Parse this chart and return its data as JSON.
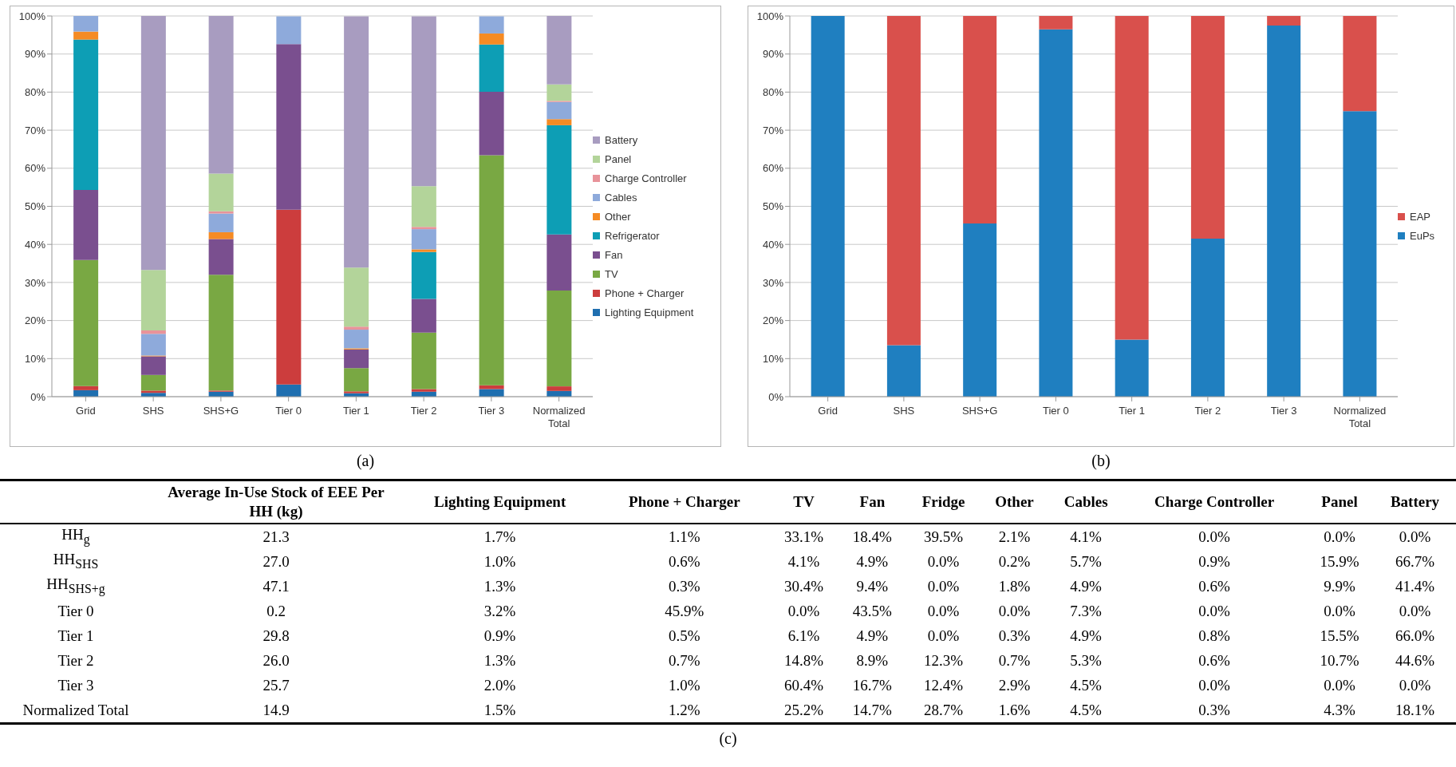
{
  "chart_data": [
    {
      "type": "bar",
      "stacked": true,
      "categories": [
        "Grid",
        "SHS",
        "SHS+G",
        "Tier 0",
        "Tier 1",
        "Tier 2",
        "Tier 3",
        "Normalized Total"
      ],
      "series": [
        {
          "name": "Lighting Equipment",
          "color": "#1f6fb0",
          "values": [
            1.7,
            1.0,
            1.3,
            3.2,
            0.9,
            1.3,
            2.0,
            1.5
          ]
        },
        {
          "name": "Phone + Charger",
          "color": "#cc3d3d",
          "values": [
            1.1,
            0.6,
            0.3,
            45.9,
            0.5,
            0.7,
            1.0,
            1.2
          ]
        },
        {
          "name": "TV",
          "color": "#79a843",
          "values": [
            33.1,
            4.1,
            30.4,
            0.0,
            6.1,
            14.8,
            60.4,
            25.2
          ]
        },
        {
          "name": "Fan",
          "color": "#7a4f8f",
          "values": [
            18.4,
            4.9,
            9.4,
            43.5,
            4.9,
            8.9,
            16.7,
            14.7
          ]
        },
        {
          "name": "Refrigerator",
          "color": "#0d9eb5",
          "values": [
            39.5,
            0.0,
            0.0,
            0.0,
            0.0,
            12.3,
            12.4,
            28.7
          ]
        },
        {
          "name": "Other",
          "color": "#f58b24",
          "values": [
            2.1,
            0.2,
            1.8,
            0.0,
            0.3,
            0.7,
            2.9,
            1.6
          ]
        },
        {
          "name": "Cables",
          "color": "#8eaadb",
          "values": [
            4.1,
            5.7,
            4.9,
            7.3,
            4.9,
            5.3,
            4.5,
            4.5
          ]
        },
        {
          "name": "Charge Controller",
          "color": "#e8939a",
          "values": [
            0.0,
            0.9,
            0.6,
            0.0,
            0.8,
            0.6,
            0.0,
            0.3
          ]
        },
        {
          "name": "Panel",
          "color": "#b3d49a",
          "values": [
            0.0,
            15.9,
            9.9,
            0.0,
            15.5,
            10.7,
            0.0,
            4.3
          ]
        },
        {
          "name": "Battery",
          "color": "#a89cc0",
          "values": [
            0.0,
            66.7,
            41.4,
            0.0,
            66.0,
            44.6,
            0.0,
            18.1
          ]
        }
      ],
      "ylim": [
        0,
        100
      ],
      "yticks": [
        {
          "value": 0,
          "label": "0%"
        },
        {
          "value": 10,
          "label": "10%"
        },
        {
          "value": 20,
          "label": "20%"
        },
        {
          "value": 30,
          "label": "30%"
        },
        {
          "value": 40,
          "label": "40%"
        },
        {
          "value": 50,
          "label": "50%"
        },
        {
          "value": 60,
          "label": "60%"
        },
        {
          "value": 70,
          "label": "70%"
        },
        {
          "value": 80,
          "label": "80%"
        },
        {
          "value": 90,
          "label": "90%"
        },
        {
          "value": 100,
          "label": "100%"
        }
      ],
      "grid": "y",
      "legend": "right",
      "annotations": [
        "(a)"
      ]
    },
    {
      "type": "bar",
      "stacked": true,
      "categories": [
        "Grid",
        "SHS",
        "SHS+G",
        "Tier 0",
        "Tier 1",
        "Tier 2",
        "Tier 3",
        "Normalized Total"
      ],
      "series": [
        {
          "name": "EuPs",
          "color": "#1f7fc0",
          "values": [
            100,
            13.5,
            45.5,
            96.5,
            15,
            41.5,
            97.5,
            75
          ]
        },
        {
          "name": "EAP",
          "color": "#d9504c",
          "values": [
            0,
            86.5,
            54.5,
            3.5,
            85,
            58.5,
            2.5,
            25
          ]
        }
      ],
      "ylim": [
        0,
        100
      ],
      "yticks": [
        {
          "value": 0,
          "label": "0%"
        },
        {
          "value": 10,
          "label": "10%"
        },
        {
          "value": 20,
          "label": "20%"
        },
        {
          "value": 30,
          "label": "30%"
        },
        {
          "value": 40,
          "label": "40%"
        },
        {
          "value": 50,
          "label": "50%"
        },
        {
          "value": 60,
          "label": "60%"
        },
        {
          "value": 70,
          "label": "70%"
        },
        {
          "value": 80,
          "label": "80%"
        },
        {
          "value": 90,
          "label": "90%"
        },
        {
          "value": 100,
          "label": "100%"
        }
      ],
      "grid": "y",
      "legend": "right",
      "annotations": [
        "(b)"
      ]
    },
    {
      "type": "other",
      "categories": [
        "Average In-Use Stock of EEE Per HH (kg)",
        "Lighting Equipment",
        "Phone + Charger",
        "TV",
        "Fan",
        "Fridge",
        "Other",
        "Cables",
        "Charge Controller",
        "Panel",
        "Battery"
      ],
      "y_categories": [
        "HH$_{g}$",
        "HH$_{SHS}$",
        "HH$_{SHS+g}$",
        "Tier 0",
        "Tier 1",
        "Tier 2",
        "Tier 3",
        "Normalized Total"
      ],
      "cell_labels": [
        [
          "21.3",
          "1.7%",
          "1.1%",
          "33.1%",
          "18.4%",
          "39.5%",
          "2.1%",
          "4.1%",
          "0.0%",
          "0.0%",
          "0.0%"
        ],
        [
          "27.0",
          "1.0%",
          "0.6%",
          "4.1%",
          "4.9%",
          "0.0%",
          "0.2%",
          "5.7%",
          "0.9%",
          "15.9%",
          "66.7%"
        ],
        [
          "47.1",
          "1.3%",
          "0.3%",
          "30.4%",
          "9.4%",
          "0.0%",
          "1.8%",
          "4.9%",
          "0.6%",
          "9.9%",
          "41.4%"
        ],
        [
          "0.2",
          "3.2%",
          "45.9%",
          "0.0%",
          "43.5%",
          "0.0%",
          "0.0%",
          "7.3%",
          "0.0%",
          "0.0%",
          "0.0%"
        ],
        [
          "29.8",
          "0.9%",
          "0.5%",
          "6.1%",
          "4.9%",
          "0.0%",
          "0.3%",
          "4.9%",
          "0.8%",
          "15.5%",
          "66.0%"
        ],
        [
          "26.0",
          "1.3%",
          "0.7%",
          "14.8%",
          "8.9%",
          "12.3%",
          "0.7%",
          "5.3%",
          "0.6%",
          "10.7%",
          "44.6%"
        ],
        [
          "25.7",
          "2.0%",
          "1.0%",
          "60.4%",
          "16.7%",
          "12.4%",
          "2.9%",
          "4.5%",
          "0.0%",
          "0.0%",
          "0.0%"
        ],
        [
          "14.9",
          "1.5%",
          "1.2%",
          "25.2%",
          "14.7%",
          "28.7%",
          "1.6%",
          "4.5%",
          "0.3%",
          "4.3%",
          "18.1%"
        ]
      ],
      "annotations": [
        "(c)"
      ]
    }
  ]
}
